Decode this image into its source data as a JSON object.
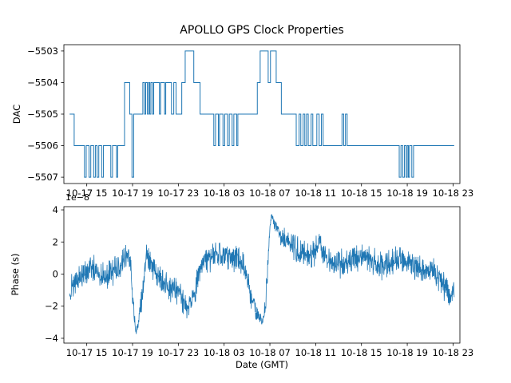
{
  "figure": {
    "title": "APOLLO GPS Clock Properties",
    "xlabel": "Date (GMT)"
  },
  "chart_data": [
    {
      "type": "line",
      "subtype": "step",
      "title": "APOLLO GPS Clock Properties",
      "ylabel": "DAC",
      "color": "#1f77b4",
      "line_width": 1.0,
      "xlim": [
        0,
        34.6
      ],
      "ylim": [
        -5507.2,
        -5502.8
      ],
      "yticks": [
        -5503,
        -5504,
        -5505,
        -5506,
        -5507
      ],
      "ytick_labels": [
        "−5503",
        "−5504",
        "−5505",
        "−5506",
        "−5507"
      ],
      "xticks": [
        2,
        6,
        10,
        14,
        18,
        22,
        26,
        30,
        34
      ],
      "xtick_labels": [
        "10-17 15",
        "10-17 19",
        "10-17 23",
        "10-18 03",
        "10-18 07",
        "10-18 11",
        "10-18 15",
        "10-18 19",
        "10-18 23"
      ],
      "steps": [
        [
          0.5,
          -5505
        ],
        [
          0.9,
          -5506
        ],
        [
          1.8,
          -5507
        ],
        [
          1.95,
          -5506
        ],
        [
          2.2,
          -5507
        ],
        [
          2.35,
          -5506
        ],
        [
          2.6,
          -5507
        ],
        [
          2.75,
          -5506
        ],
        [
          2.9,
          -5507
        ],
        [
          3.05,
          -5506
        ],
        [
          3.3,
          -5507
        ],
        [
          3.45,
          -5506
        ],
        [
          4.1,
          -5507
        ],
        [
          4.25,
          -5506
        ],
        [
          4.6,
          -5507
        ],
        [
          4.7,
          -5506
        ],
        [
          5.3,
          -5504
        ],
        [
          5.75,
          -5505
        ],
        [
          5.95,
          -5507
        ],
        [
          6.1,
          -5505
        ],
        [
          6.9,
          -5504
        ],
        [
          7.05,
          -5505
        ],
        [
          7.15,
          -5504
        ],
        [
          7.3,
          -5505
        ],
        [
          7.4,
          -5504
        ],
        [
          7.5,
          -5505
        ],
        [
          7.6,
          -5504
        ],
        [
          7.75,
          -5505
        ],
        [
          7.85,
          -5504
        ],
        [
          8.35,
          -5505
        ],
        [
          8.45,
          -5504
        ],
        [
          8.8,
          -5505
        ],
        [
          8.9,
          -5504
        ],
        [
          9.4,
          -5505
        ],
        [
          9.6,
          -5504
        ],
        [
          9.8,
          -5505
        ],
        [
          10.3,
          -5504
        ],
        [
          10.6,
          -5503
        ],
        [
          11.35,
          -5504
        ],
        [
          11.9,
          -5505
        ],
        [
          13.1,
          -5506
        ],
        [
          13.25,
          -5505
        ],
        [
          13.5,
          -5506
        ],
        [
          13.6,
          -5505
        ],
        [
          13.9,
          -5506
        ],
        [
          14.05,
          -5505
        ],
        [
          14.3,
          -5506
        ],
        [
          14.45,
          -5505
        ],
        [
          14.7,
          -5506
        ],
        [
          14.85,
          -5505
        ],
        [
          15.1,
          -5506
        ],
        [
          15.2,
          -5505
        ],
        [
          16.9,
          -5504
        ],
        [
          17.15,
          -5503
        ],
        [
          17.85,
          -5504
        ],
        [
          18.05,
          -5503
        ],
        [
          18.55,
          -5504
        ],
        [
          19.0,
          -5505
        ],
        [
          20.3,
          -5506
        ],
        [
          20.55,
          -5505
        ],
        [
          20.7,
          -5506
        ],
        [
          20.9,
          -5505
        ],
        [
          21.05,
          -5506
        ],
        [
          21.2,
          -5505
        ],
        [
          21.35,
          -5506
        ],
        [
          21.6,
          -5505
        ],
        [
          21.75,
          -5506
        ],
        [
          22.1,
          -5505
        ],
        [
          22.3,
          -5506
        ],
        [
          22.5,
          -5505
        ],
        [
          22.65,
          -5506
        ],
        [
          24.3,
          -5505
        ],
        [
          24.45,
          -5506
        ],
        [
          24.6,
          -5505
        ],
        [
          24.75,
          -5506
        ],
        [
          29.3,
          -5507
        ],
        [
          29.45,
          -5506
        ],
        [
          29.6,
          -5507
        ],
        [
          29.75,
          -5506
        ],
        [
          29.9,
          -5507
        ],
        [
          30.0,
          -5506
        ],
        [
          30.1,
          -5507
        ],
        [
          30.2,
          -5506
        ],
        [
          30.4,
          -5507
        ],
        [
          30.55,
          -5506
        ],
        [
          34.1,
          -5506
        ]
      ]
    },
    {
      "type": "line",
      "subtype": "noisy",
      "ylabel": "Phase (s)",
      "offset_label": "1e−8",
      "color": "#1f77b4",
      "line_width": 0.8,
      "xlim": [
        0,
        34.6
      ],
      "ylim": [
        -4.3,
        4.2
      ],
      "yticks": [
        -4,
        -2,
        0,
        2,
        4
      ],
      "ytick_labels": [
        "−4",
        "−2",
        "0",
        "2",
        "4"
      ],
      "xticks": [
        2,
        6,
        10,
        14,
        18,
        22,
        26,
        30,
        34
      ],
      "xtick_labels": [
        "10-17 15",
        "10-17 19",
        "10-17 23",
        "10-18 03",
        "10-18 07",
        "10-18 11",
        "10-18 15",
        "10-18 19",
        "10-18 23"
      ],
      "anchors": [
        [
          0.5,
          -1.3
        ],
        [
          0.8,
          -0.7
        ],
        [
          1.2,
          -0.2
        ],
        [
          2.0,
          0.2
        ],
        [
          2.6,
          0.4
        ],
        [
          3.2,
          0.1
        ],
        [
          3.8,
          -0.1
        ],
        [
          4.4,
          0.3
        ],
        [
          5.0,
          0.6
        ],
        [
          5.5,
          1.2
        ],
        [
          5.8,
          0.6
        ],
        [
          6.0,
          -1.5
        ],
        [
          6.3,
          -3.7
        ],
        [
          6.6,
          -2.6
        ],
        [
          6.9,
          -1.0
        ],
        [
          7.2,
          1.4
        ],
        [
          7.5,
          1.0
        ],
        [
          8.0,
          0.1
        ],
        [
          8.6,
          -0.5
        ],
        [
          9.2,
          -0.8
        ],
        [
          10.0,
          -1.2
        ],
        [
          10.5,
          -1.9
        ],
        [
          10.9,
          -2.2
        ],
        [
          11.3,
          -1.2
        ],
        [
          11.8,
          -0.2
        ],
        [
          12.3,
          0.7
        ],
        [
          13.0,
          1.1
        ],
        [
          13.7,
          1.3
        ],
        [
          14.5,
          1.2
        ],
        [
          15.2,
          0.9
        ],
        [
          15.8,
          0.3
        ],
        [
          16.3,
          -1.2
        ],
        [
          16.8,
          -2.4
        ],
        [
          17.3,
          -2.9
        ],
        [
          17.6,
          -2.2
        ],
        [
          17.8,
          0.5
        ],
        [
          18.0,
          3.0
        ],
        [
          18.15,
          3.7
        ],
        [
          18.5,
          2.9
        ],
        [
          19.0,
          2.4
        ],
        [
          19.8,
          1.9
        ],
        [
          20.6,
          1.4
        ],
        [
          21.4,
          1.1
        ],
        [
          22.0,
          1.3
        ],
        [
          22.3,
          2.3
        ],
        [
          22.7,
          1.2
        ],
        [
          23.3,
          0.7
        ],
        [
          24.0,
          0.5
        ],
        [
          24.8,
          0.8
        ],
        [
          25.6,
          1.0
        ],
        [
          26.3,
          1.2
        ],
        [
          27.0,
          0.8
        ],
        [
          27.8,
          0.4
        ],
        [
          28.5,
          0.7
        ],
        [
          29.2,
          1.0
        ],
        [
          30.0,
          0.7
        ],
        [
          30.8,
          0.3
        ],
        [
          31.5,
          0.4
        ],
        [
          32.2,
          0.3
        ],
        [
          32.8,
          -0.2
        ],
        [
          33.4,
          -1.0
        ],
        [
          33.8,
          -1.5
        ],
        [
          34.1,
          -1.1
        ]
      ],
      "noise_amplitude": 1.0,
      "n_points": 1500,
      "seed": 123456789
    }
  ]
}
